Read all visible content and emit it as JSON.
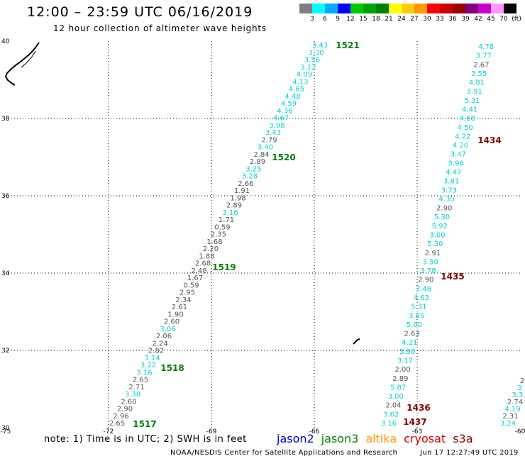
{
  "title": "12:00 – 23:59 UTC 06/16/2019",
  "subtitle": "12 hour collection of altimeter wave heights",
  "colorbar": {
    "unit": "(ft)",
    "colors": [
      "#7f7f7f",
      "#00ffff",
      "#00aaff",
      "#0000ff",
      "#00c800",
      "#00a000",
      "#008000",
      "#ffff00",
      "#ffcc00",
      "#ff9900",
      "#ff0000",
      "#cc0000",
      "#990000",
      "#800080",
      "#cc00cc",
      "#ff99ff",
      "#000000"
    ],
    "labels": [
      "3",
      "6",
      "9",
      "12",
      "15",
      "18",
      "21",
      "24",
      "27",
      "30",
      "33",
      "36",
      "39",
      "42",
      "45",
      "70"
    ]
  },
  "axes": {
    "lon_ticks": [
      -75,
      -72,
      -69,
      -66,
      -63,
      -60
    ],
    "lat_ticks": [
      30,
      32,
      34,
      36,
      38,
      40
    ],
    "lon_range": [
      -75,
      -60
    ],
    "lat_range": [
      30,
      40
    ]
  },
  "passes": [
    {
      "label": "1517",
      "color": "#008000"
    },
    {
      "label": "1518",
      "color": "#008000"
    },
    {
      "label": "1519",
      "color": "#008000"
    },
    {
      "label": "1520",
      "color": "#008000"
    },
    {
      "label": "1521",
      "color": "#008000"
    },
    {
      "label": "1434",
      "color": "#800000"
    },
    {
      "label": "1435",
      "color": "#800000"
    },
    {
      "label": "1436",
      "color": "#800000"
    },
    {
      "label": "1437",
      "color": "#800000"
    }
  ],
  "tracks": [
    {
      "name": "jason3",
      "values": [
        "2.65",
        "2.96",
        "2.90",
        "2.60",
        "3.38",
        "2.71",
        "2.65",
        "3.16",
        "3.22",
        "3.14",
        "2.82",
        "2.24",
        "2.06",
        "3.06",
        "2.60",
        "1.90",
        "2.61",
        "2.34",
        "2.95",
        "0.59",
        "1.67",
        "2.48",
        "2.68",
        "1.88",
        "2.20",
        "1.68",
        "2.35",
        "0.59",
        "1.71",
        "3.16",
        "2.89",
        "1.98",
        "1.91",
        "2.66",
        "3.28",
        "3.25",
        "2.89",
        "2.84",
        "3.40",
        "2.79",
        "3.43",
        "3.98",
        "4.67",
        "4.36",
        "4.59",
        "4.48",
        "4.65",
        "4.13",
        "4.09",
        "3.12",
        "3.56",
        "3.30",
        "3.43"
      ]
    },
    {
      "name": "cryosat-east",
      "values": [
        "4.78",
        "3.77",
        "2.67",
        "3.55",
        "4.81",
        "3.91",
        "5.31",
        "4.41",
        "4.68",
        "4.50",
        "4.22",
        "4.20",
        "3.47",
        "3.96",
        "4.47",
        "3.81",
        "3.73",
        "4.30",
        "2.90",
        "5.30",
        "5.92",
        "3.00",
        "5.30",
        "2.91",
        "3.50",
        "3.78",
        "2.90",
        "3.48",
        "4.63",
        "5.31",
        "3.85",
        "5.00",
        "2.63",
        "4.21",
        "3.98",
        "3.17",
        "2.00",
        "2.89",
        "5.87",
        "3.00",
        "2.04",
        "3.62",
        "3.16"
      ]
    },
    {
      "name": "s3a-partial",
      "values": [
        "2",
        "3",
        "3.3",
        "2.74",
        "4.19",
        "2.31",
        "3.24"
      ]
    }
  ],
  "legend": {
    "note": "note:  1) Time is in UTC;  2) SWH is in feet",
    "items": [
      {
        "name": "jason2",
        "color": "#0000cc"
      },
      {
        "name": "jason3",
        "color": "#008000"
      },
      {
        "name": "altika",
        "color": "#ff9900"
      },
      {
        "name": "cryosat",
        "color": "#cc0000"
      },
      {
        "name": "s3a",
        "color": "#800000"
      }
    ]
  },
  "footer": {
    "credit": "NOAA/NESDIS Center for Satellite Applications and Research",
    "timestamp": "Jun 17 12:27:49 UTC 2019"
  }
}
